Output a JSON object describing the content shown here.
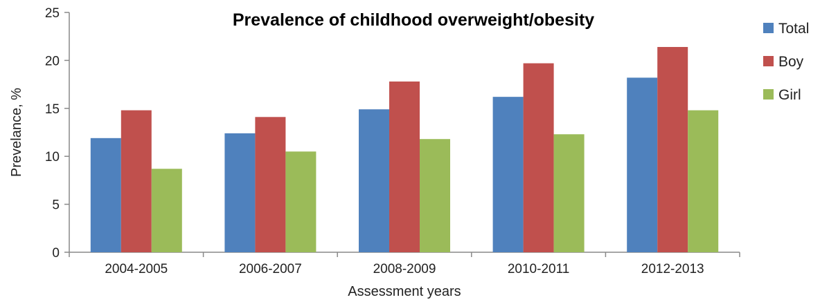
{
  "chart_data": {
    "type": "bar",
    "title": "Prevalence of childhood overweight/obesity",
    "xlabel": "Assessment years",
    "ylabel": "Prevelance, %",
    "ylim": [
      0,
      25
    ],
    "yticks": [
      0,
      5,
      10,
      15,
      20,
      25
    ],
    "categories": [
      "2004-2005",
      "2006-2007",
      "2008-2009",
      "2010-2011",
      "2012-2013"
    ],
    "series": [
      {
        "name": "Total",
        "color": "#4F81BD",
        "values": [
          11.9,
          12.4,
          14.9,
          16.2,
          18.2
        ]
      },
      {
        "name": "Boy",
        "color": "#C0504D",
        "values": [
          14.8,
          14.1,
          17.8,
          19.7,
          21.4
        ]
      },
      {
        "name": "Girl",
        "color": "#9BBB59",
        "values": [
          8.7,
          10.5,
          11.8,
          12.3,
          14.8
        ]
      }
    ],
    "grid": false,
    "legend": "right"
  }
}
